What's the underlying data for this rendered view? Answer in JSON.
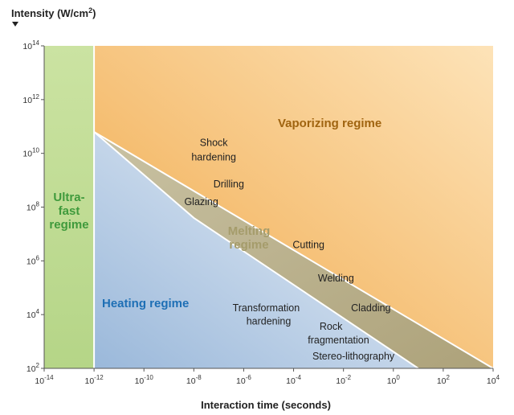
{
  "chart_data": {
    "type": "diagram",
    "ylabel": "Intensity (W/cm",
    "ylabel_sup": "2",
    "ylabel_close": ")",
    "xlabel": "Interaction time (seconds)",
    "x_axis": {
      "scale": "log",
      "range_exp": [
        -14,
        4
      ],
      "tick_exponents": [
        -14,
        -12,
        -10,
        -8,
        -6,
        -4,
        -2,
        0,
        2,
        4
      ]
    },
    "y_axis": {
      "scale": "log",
      "range_exp": [
        2,
        14
      ],
      "tick_exponents": [
        2,
        4,
        6,
        8,
        10,
        12,
        14
      ]
    },
    "regimes": [
      {
        "id": "ultrafast",
        "lines": [
          "Ultra-",
          "fast",
          "regime"
        ],
        "color": "#3f9a3c",
        "fill": "#bfdc93",
        "boundary": [
          [
            -14,
            2
          ],
          [
            -12,
            2
          ],
          [
            -12,
            14
          ],
          [
            -14,
            14
          ]
        ]
      },
      {
        "id": "vaporizing",
        "lines": [
          "Vaporizing regime"
        ],
        "color": "#a06410",
        "fill": "#f2b65a",
        "boundary": [
          [
            -12,
            14
          ],
          [
            4,
            14
          ],
          [
            4,
            2
          ],
          [
            -12,
            10.8
          ]
        ]
      },
      {
        "id": "melting",
        "lines": [
          "Melting",
          "regime"
        ],
        "color": "#a59c6b",
        "fill": "#b9b18e",
        "boundary": [
          [
            -12,
            10.8
          ],
          [
            4,
            2
          ],
          [
            1,
            2
          ],
          [
            -8,
            7.6
          ],
          [
            -12,
            10.8
          ]
        ]
      },
      {
        "id": "heating",
        "lines": [
          "Heating regime"
        ],
        "color": "#1e6fb5",
        "fill": "#c2d6ea",
        "boundary": [
          [
            -12,
            2
          ],
          [
            1,
            2
          ],
          [
            -8,
            7.6
          ],
          [
            -12,
            10.8
          ]
        ]
      }
    ],
    "process_labels": [
      {
        "text": "Shock",
        "x_exp": -7.2,
        "y_exp": 10.4
      },
      {
        "text": "hardening",
        "x_exp": -7.2,
        "y_exp": 9.85
      },
      {
        "text": "Drilling",
        "x_exp": -6.6,
        "y_exp": 8.85
      },
      {
        "text": "Glazing",
        "x_exp": -7.7,
        "y_exp": 8.2
      },
      {
        "text": "Cutting",
        "x_exp": -3.4,
        "y_exp": 6.6
      },
      {
        "text": "Welding",
        "x_exp": -2.3,
        "y_exp": 5.35
      },
      {
        "text": "Transformation",
        "x_exp": -5.1,
        "y_exp": 4.25
      },
      {
        "text": "Cladding",
        "x_exp": -0.9,
        "y_exp": 4.25
      },
      {
        "text": "hardening",
        "x_exp": -5.0,
        "y_exp": 3.75
      },
      {
        "text": "Rock",
        "x_exp": -2.5,
        "y_exp": 3.55
      },
      {
        "text": "fragmentation",
        "x_exp": -2.2,
        "y_exp": 3.05
      },
      {
        "text": "Stereo-lithography",
        "x_exp": -1.6,
        "y_exp": 2.45
      }
    ]
  }
}
